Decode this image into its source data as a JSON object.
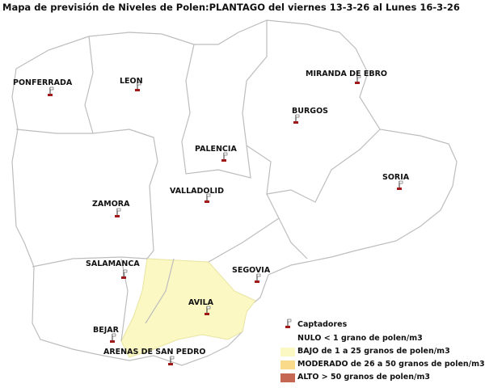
{
  "title": "Mapa de previsión de Niveles de Polen:PLANTAGO  del viernes 13-3-26 al Lunes 16-3-26",
  "stations": [
    {
      "name": "PONFERRADA"
    },
    {
      "name": "LEON"
    },
    {
      "name": "MIRANDA DE EBRO"
    },
    {
      "name": "BURGOS"
    },
    {
      "name": "PALENCIA"
    },
    {
      "name": "SORIA"
    },
    {
      "name": "VALLADOLID"
    },
    {
      "name": "ZAMORA"
    },
    {
      "name": "SALAMANCA"
    },
    {
      "name": "SEGOVIA"
    },
    {
      "name": "AVILA"
    },
    {
      "name": "BEJAR"
    },
    {
      "name": "ARENAS DE SAN PEDRO"
    }
  ],
  "levels": {
    "AVILA": "BAJO",
    "others": "NULO"
  },
  "legend": {
    "marker": "Captadores",
    "nulo": "NULO < 1 grano de polen/m3",
    "bajo": "BAJO de 1 a 25 granos de polen/m3",
    "moderado": "MODERADO de 26 a 50 granos de polen/m3",
    "alto": "ALTO > 50 granos de polen/m3"
  },
  "colors": {
    "nulo": "#ffffff",
    "bajo": "#fbf8c4",
    "moderado": "#f9d98a",
    "alto": "#c46652",
    "marker": "#a01818"
  }
}
